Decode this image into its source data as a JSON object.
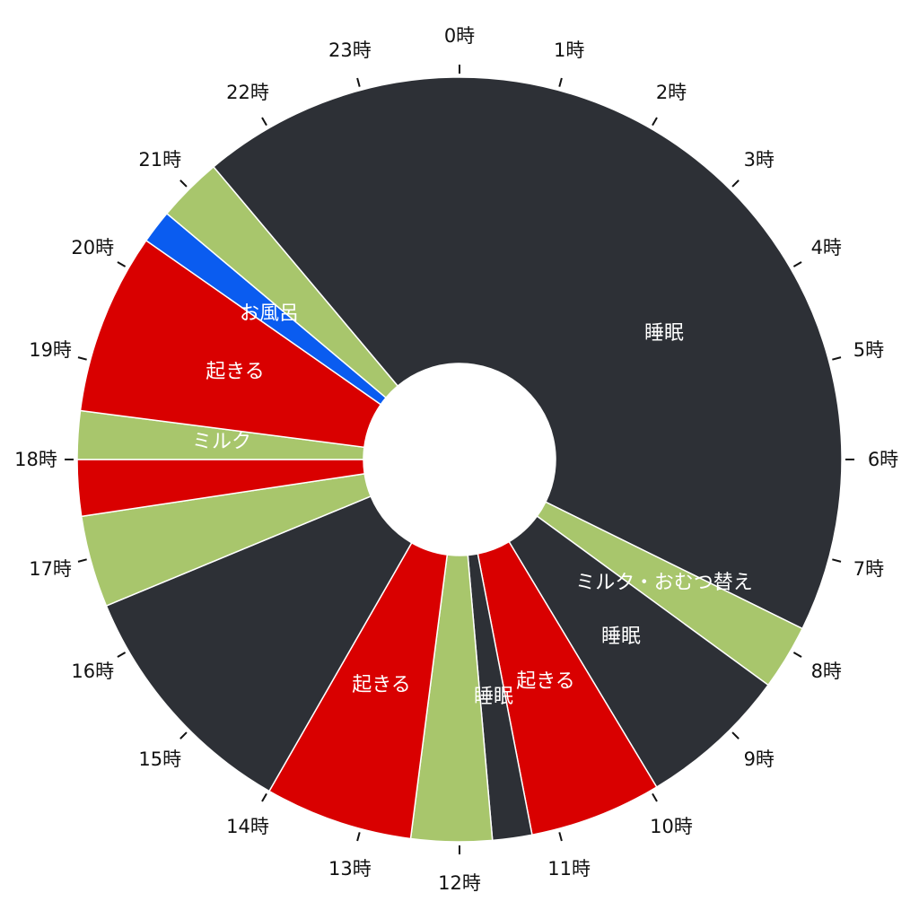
{
  "chart_data": {
    "type": "pie",
    "subtype": "donut-24h-clock",
    "colors": {
      "睡眠": "#2d3036",
      "ミルク": "#a8c66c",
      "起きる": "#d90000",
      "お風呂": "#0a5cf0"
    },
    "segments": [
      {
        "start": 21.33,
        "end": 31.75,
        "category": "睡眠",
        "label": "睡眠"
      },
      {
        "start": 7.75,
        "end": 8.41,
        "category": "ミルク",
        "label": "ミルク・おむつ替え"
      },
      {
        "start": 8.41,
        "end": 9.93,
        "category": "睡眠",
        "label": "睡眠"
      },
      {
        "start": 9.93,
        "end": 11.27,
        "category": "起きる",
        "label": "起きる"
      },
      {
        "start": 11.27,
        "end": 11.67,
        "category": "睡眠",
        "label": "睡眠"
      },
      {
        "start": 11.67,
        "end": 12.49,
        "category": "ミルク",
        "label": ""
      },
      {
        "start": 12.49,
        "end": 13.99,
        "category": "起きる",
        "label": "起きる"
      },
      {
        "start": 13.99,
        "end": 16.5,
        "category": "睡眠",
        "label": ""
      },
      {
        "start": 16.5,
        "end": 17.43,
        "category": "ミルク",
        "label": ""
      },
      {
        "start": 17.43,
        "end": 18.0,
        "category": "起きる",
        "label": ""
      },
      {
        "start": 18.0,
        "end": 18.49,
        "category": "ミルク",
        "label": "ミルク"
      },
      {
        "start": 18.49,
        "end": 20.33,
        "category": "起きる",
        "label": "起きる"
      },
      {
        "start": 20.33,
        "end": 20.67,
        "category": "お風呂",
        "label": "お風呂"
      },
      {
        "start": 20.67,
        "end": 21.33,
        "category": "ミルク",
        "label": ""
      }
    ],
    "tick_labels": [
      "0時",
      "1時",
      "2時",
      "3時",
      "4時",
      "5時",
      "6時",
      "7時",
      "8時",
      "9時",
      "10時",
      "11時",
      "12時",
      "13時",
      "14時",
      "15時",
      "16時",
      "17時",
      "18時",
      "19時",
      "20時",
      "21時",
      "22時",
      "23時"
    ]
  }
}
